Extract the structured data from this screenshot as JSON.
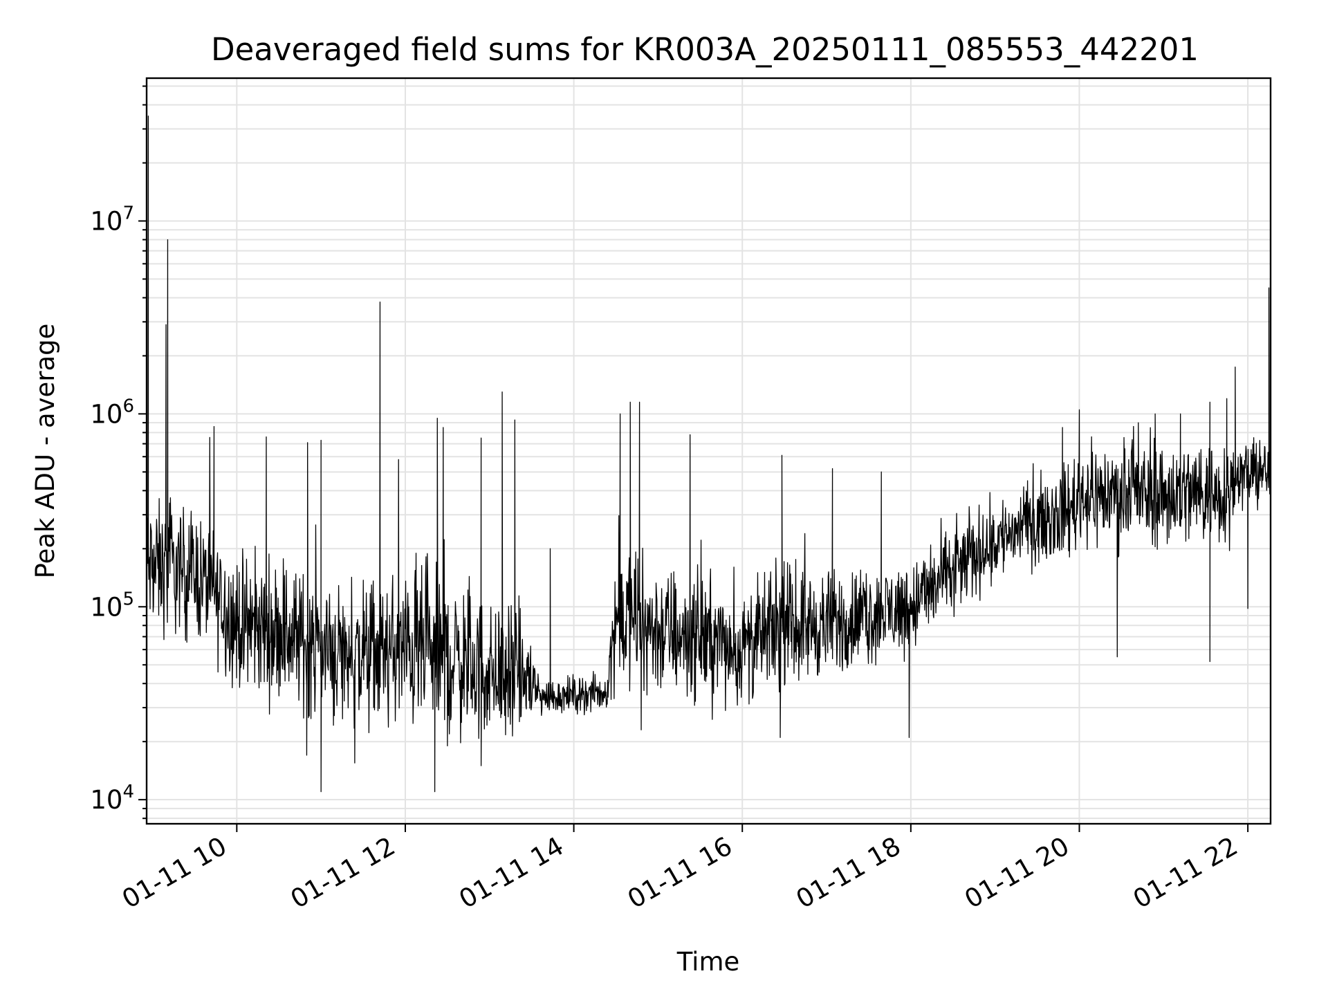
{
  "chart_data": {
    "type": "line",
    "scale_y": "log",
    "title": "Deaveraged field sums for KR003A_20250111_085553_442201",
    "xlabel": "Time",
    "ylabel": "Peak ADU - average",
    "grid": true,
    "xlim": [
      8.93,
      22.27
    ],
    "ylim": [
      7500,
      55000000
    ],
    "x_unit": "hours on 2025-01-11",
    "x_ticks": [
      {
        "value": 10,
        "label": "01-11 10"
      },
      {
        "value": 12,
        "label": "01-11 12"
      },
      {
        "value": 14,
        "label": "01-11 14"
      },
      {
        "value": 16,
        "label": "01-11 16"
      },
      {
        "value": 18,
        "label": "01-11 18"
      },
      {
        "value": 20,
        "label": "01-11 20"
      },
      {
        "value": 22,
        "label": "01-11 22"
      }
    ],
    "y_ticks": [
      {
        "value": 10000,
        "base": "10",
        "exp": "4"
      },
      {
        "value": 100000,
        "base": "10",
        "exp": "5"
      },
      {
        "value": 1000000,
        "base": "10",
        "exp": "6"
      },
      {
        "value": 10000000,
        "base": "10",
        "exp": "7"
      }
    ],
    "series": [
      {
        "name": "Peak ADU - average",
        "trend_anchors": [
          [
            8.93,
            160000
          ],
          [
            9.5,
            150000
          ],
          [
            10.0,
            80000
          ],
          [
            10.5,
            75000
          ],
          [
            11.0,
            60000
          ],
          [
            11.5,
            55000
          ],
          [
            12.0,
            60000
          ],
          [
            12.5,
            55000
          ],
          [
            13.0,
            45000
          ],
          [
            13.5,
            42000
          ],
          [
            13.6,
            34000
          ],
          [
            14.4,
            36000
          ],
          [
            14.5,
            90000
          ],
          [
            15.0,
            75000
          ],
          [
            15.5,
            70000
          ],
          [
            16.0,
            60000
          ],
          [
            16.5,
            80000
          ],
          [
            17.0,
            80000
          ],
          [
            17.5,
            90000
          ],
          [
            18.0,
            100000
          ],
          [
            18.5,
            150000
          ],
          [
            19.0,
            220000
          ],
          [
            19.5,
            280000
          ],
          [
            19.9,
            320000
          ],
          [
            20.0,
            380000
          ],
          [
            21.0,
            380000
          ],
          [
            21.8,
            400000
          ],
          [
            21.82,
            480000
          ],
          [
            22.27,
            500000
          ]
        ],
        "band_anchors": [
          [
            8.93,
            0.9
          ],
          [
            9.6,
            0.85
          ],
          [
            10.0,
            0.9
          ],
          [
            11.5,
            1.0
          ],
          [
            12.5,
            1.1
          ],
          [
            13.5,
            0.85
          ],
          [
            13.6,
            0.25
          ],
          [
            14.4,
            0.25
          ],
          [
            14.5,
            0.95
          ],
          [
            16.0,
            0.8
          ],
          [
            18.0,
            0.65
          ],
          [
            19.5,
            0.55
          ],
          [
            20.0,
            0.7
          ],
          [
            21.8,
            0.75
          ],
          [
            21.82,
            0.45
          ],
          [
            22.27,
            0.45
          ]
        ],
        "spikes": [
          [
            8.95,
            35000000
          ],
          [
            9.18,
            8000000
          ],
          [
            9.16,
            2900000
          ],
          [
            11.7,
            3800000
          ],
          [
            13.15,
            1300000
          ],
          [
            12.38,
            950000
          ],
          [
            12.45,
            850000
          ],
          [
            12.9,
            750000
          ],
          [
            13.3,
            930000
          ],
          [
            14.67,
            1150000
          ],
          [
            14.78,
            1150000
          ],
          [
            15.38,
            780000
          ],
          [
            9.73,
            860000
          ],
          [
            10.35,
            760000
          ],
          [
            11.0,
            730000
          ],
          [
            10.84,
            710000
          ],
          [
            11.92,
            580000
          ],
          [
            14.55,
            1000000
          ],
          [
            16.47,
            610000
          ],
          [
            17.07,
            520000
          ],
          [
            17.65,
            500000
          ],
          [
            19.8,
            850000
          ],
          [
            20.0,
            1050000
          ],
          [
            20.7,
            900000
          ],
          [
            20.9,
            1000000
          ],
          [
            21.2,
            1000000
          ],
          [
            21.55,
            1150000
          ],
          [
            21.75,
            1200000
          ],
          [
            21.85,
            1750000
          ],
          [
            22.25,
            4500000
          ],
          [
            13.72,
            200000
          ]
        ],
        "dips": [
          [
            11.0,
            11000
          ],
          [
            12.35,
            11000
          ],
          [
            12.9,
            15000
          ],
          [
            11.4,
            15500
          ],
          [
            10.83,
            17000
          ],
          [
            12.5,
            19000
          ],
          [
            16.45,
            21000
          ],
          [
            17.98,
            21000
          ],
          [
            15.8,
            29000
          ],
          [
            14.8,
            23000
          ],
          [
            20.45,
            55000
          ],
          [
            21.55,
            52000
          ],
          [
            22.0,
            98000
          ]
        ]
      }
    ]
  }
}
